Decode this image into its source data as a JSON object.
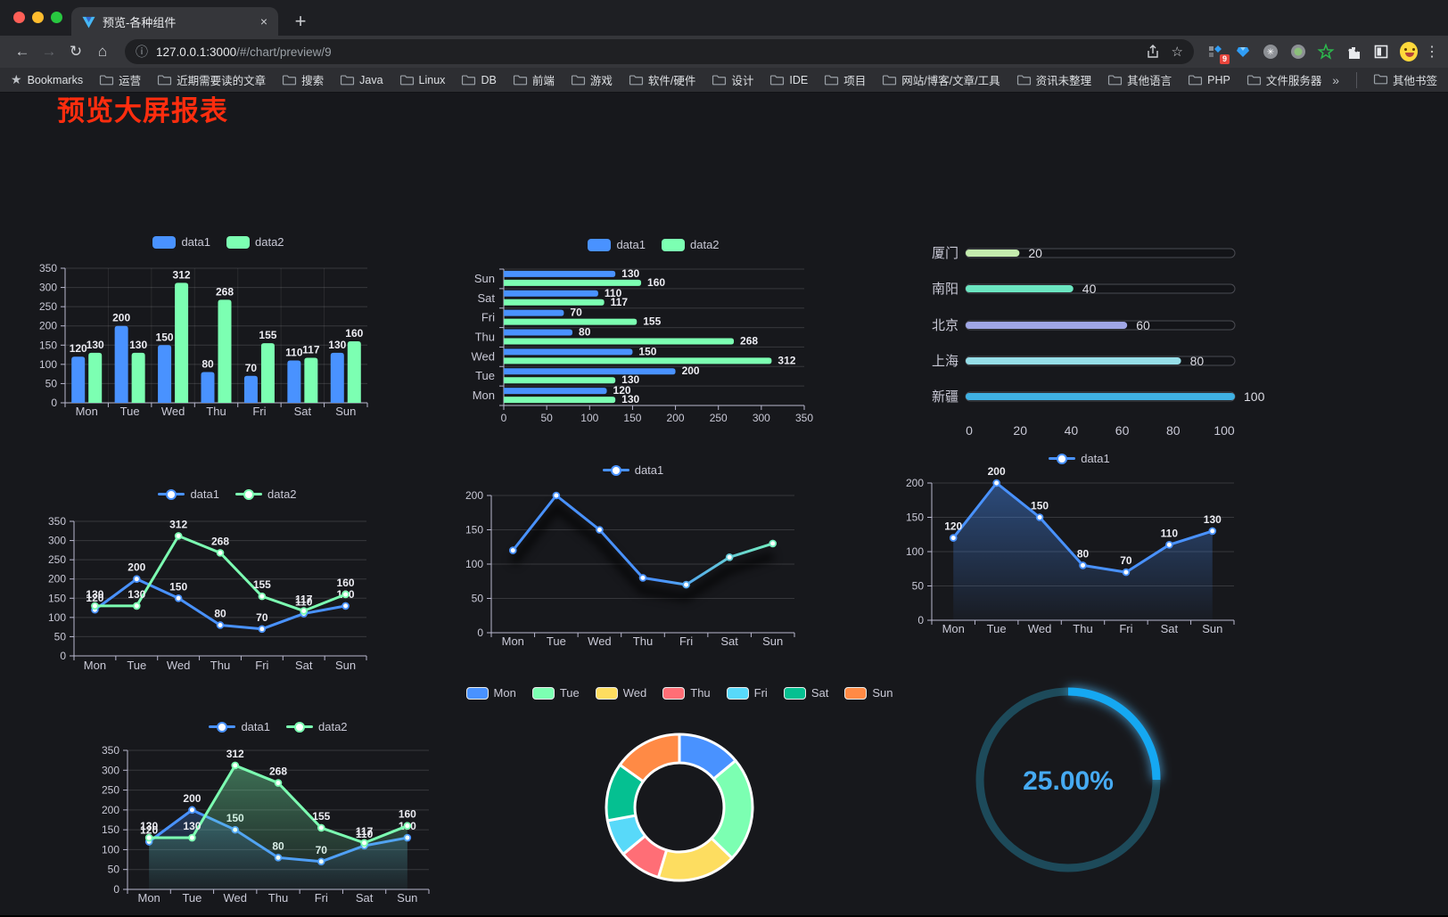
{
  "browser": {
    "tab": {
      "title": "预览-各种组件",
      "close_glyph": "×",
      "new_tab_glyph": "+"
    },
    "nav": {
      "back": "←",
      "forward": "→",
      "reload": "↻",
      "home": "⌂"
    },
    "address": {
      "info_glyph": "ⓘ",
      "url_host": "127.0.0.1:3000",
      "url_path": "/#/chart/preview/9",
      "bookmark_star_glyph": "☆"
    },
    "actions": {
      "extension_badge": "9",
      "menu_glyph": "⋮"
    },
    "bookmarks_bar": {
      "star_glyph": "★",
      "star_label": "Bookmarks",
      "folders": [
        "运营",
        "近期需要读的文章",
        "搜索",
        "Java",
        "Linux",
        "DB",
        "前端",
        "游戏",
        "软件/硬件",
        "设计",
        "IDE",
        "项目",
        "网站/博客/文章/工具",
        "资讯未整理",
        "其他语言",
        "PHP",
        "文件服务器"
      ],
      "overflow_glyph": "»",
      "other_bookmarks": "其他书签"
    }
  },
  "page": {
    "title": "预览大屏报表",
    "title_color": "#ff2d0e"
  },
  "chart_data": [
    {
      "id": "bar-vertical",
      "type": "bar",
      "categories": [
        "Mon",
        "Tue",
        "Wed",
        "Thu",
        "Fri",
        "Sat",
        "Sun"
      ],
      "series": [
        {
          "name": "data1",
          "color": "#4992ff",
          "values": [
            120,
            200,
            150,
            80,
            70,
            110,
            130
          ]
        },
        {
          "name": "data2",
          "color": "#7cffb2",
          "values": [
            130,
            130,
            312,
            268,
            155,
            117,
            160
          ]
        }
      ],
      "ylim": [
        0,
        350
      ],
      "ystep": 50,
      "legend_position": "top",
      "grid": true,
      "show_labels": true
    },
    {
      "id": "bar-horizontal",
      "type": "bar",
      "categories": [
        "Mon",
        "Tue",
        "Wed",
        "Thu",
        "Fri",
        "Sat",
        "Sun"
      ],
      "category_order_top_down": [
        "Sun",
        "Sat",
        "Fri",
        "Thu",
        "Wed",
        "Tue",
        "Mon"
      ],
      "series": [
        {
          "name": "data1",
          "color": "#4992ff",
          "values": [
            120,
            200,
            150,
            80,
            70,
            110,
            130
          ]
        },
        {
          "name": "data2",
          "color": "#7cffb2",
          "values": [
            130,
            130,
            312,
            268,
            155,
            117,
            160
          ]
        }
      ],
      "xlim": [
        0,
        350
      ],
      "xticks": [
        0,
        50,
        100,
        150,
        200,
        250,
        300,
        350
      ],
      "legend_position": "top",
      "show_labels": true
    },
    {
      "id": "progress-bars",
      "type": "bar",
      "items": [
        {
          "label": "厦门",
          "value": 20,
          "color": "#c4ebad"
        },
        {
          "label": "南阳",
          "value": 40,
          "color": "#6be6c1"
        },
        {
          "label": "北京",
          "value": 60,
          "color": "#a0a7e6"
        },
        {
          "label": "上海",
          "value": 80,
          "color": "#96dee8"
        },
        {
          "label": "新疆",
          "value": 100,
          "color": "#3fb1e3"
        }
      ],
      "xlim": [
        0,
        100
      ],
      "xticks": [
        0,
        20,
        40,
        60,
        80,
        100
      ]
    },
    {
      "id": "line-two-series",
      "type": "line",
      "categories": [
        "Mon",
        "Tue",
        "Wed",
        "Thu",
        "Fri",
        "Sat",
        "Sun"
      ],
      "series": [
        {
          "name": "data1",
          "color": "#4992ff",
          "values": [
            120,
            200,
            150,
            80,
            70,
            110,
            130
          ]
        },
        {
          "name": "data2",
          "color": "#7cffb2",
          "values": [
            130,
            130,
            312,
            268,
            155,
            117,
            160
          ]
        }
      ],
      "ylim": [
        0,
        350
      ],
      "ystep": 50,
      "legend_position": "top",
      "show_labels": true
    },
    {
      "id": "line-gradient",
      "type": "line",
      "categories": [
        "Mon",
        "Tue",
        "Wed",
        "Thu",
        "Fri",
        "Sat",
        "Sun"
      ],
      "series": [
        {
          "name": "data1",
          "color": "#4992ff",
          "gradient": [
            "#4992ff",
            "#7cffb2"
          ],
          "values": [
            120,
            200,
            150,
            80,
            70,
            110,
            130
          ]
        }
      ],
      "ylim": [
        0,
        200
      ],
      "ystep": 50,
      "legend_position": "top",
      "show_labels": false
    },
    {
      "id": "area-single",
      "type": "area",
      "categories": [
        "Mon",
        "Tue",
        "Wed",
        "Thu",
        "Fri",
        "Sat",
        "Sun"
      ],
      "series": [
        {
          "name": "data1",
          "color": "#4992ff",
          "area": true,
          "values": [
            120,
            200,
            150,
            80,
            70,
            110,
            130
          ]
        }
      ],
      "ylim": [
        0,
        200
      ],
      "ystep": 50,
      "legend_position": "top",
      "show_labels": true
    },
    {
      "id": "area-two-series",
      "type": "area",
      "categories": [
        "Mon",
        "Tue",
        "Wed",
        "Thu",
        "Fri",
        "Sat",
        "Sun"
      ],
      "series": [
        {
          "name": "data1",
          "color": "#4992ff",
          "area": true,
          "values": [
            120,
            200,
            150,
            80,
            70,
            110,
            130
          ]
        },
        {
          "name": "data2",
          "color": "#7cffb2",
          "area": true,
          "values": [
            130,
            130,
            312,
            268,
            155,
            117,
            160
          ]
        }
      ],
      "ylim": [
        0,
        350
      ],
      "ystep": 50,
      "legend_position": "top",
      "show_labels": true
    },
    {
      "id": "donut",
      "type": "pie",
      "categories": [
        "Mon",
        "Tue",
        "Wed",
        "Thu",
        "Fri",
        "Sat",
        "Sun"
      ],
      "values": [
        120,
        200,
        150,
        80,
        70,
        110,
        130
      ],
      "colors": [
        "#4992ff",
        "#7cffb2",
        "#fddd60",
        "#ff6e76",
        "#58d9f9",
        "#05c091",
        "#ff8a45"
      ],
      "legend_position": "top"
    },
    {
      "id": "gauge",
      "type": "gauge",
      "value": 25,
      "max": 100,
      "value_label": "25.00%",
      "color": "#15a8f2",
      "track_color": "#1d4a5a",
      "text_color": "#46aaf2"
    }
  ]
}
